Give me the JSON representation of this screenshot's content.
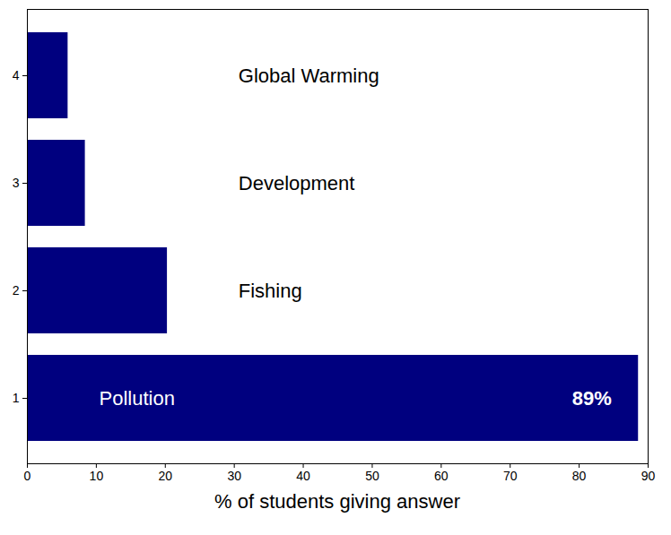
{
  "chart_data": {
    "type": "bar",
    "orientation": "horizontal",
    "categories": [
      "1",
      "2",
      "3",
      "4"
    ],
    "values": [
      88.6,
      20.3,
      8.4,
      5.9
    ],
    "bar_labels": [
      "Pollution",
      "Fishing",
      "Development",
      "Global Warming"
    ],
    "data_labels": true,
    "value_labels": [
      "89%",
      null,
      null,
      null
    ],
    "color": "#00007f",
    "xlabel": "% of students giving answer",
    "xlim": [
      0,
      90
    ],
    "xticks": [
      0,
      10,
      20,
      30,
      40,
      50,
      60,
      70,
      80,
      90
    ],
    "grid": false
  }
}
